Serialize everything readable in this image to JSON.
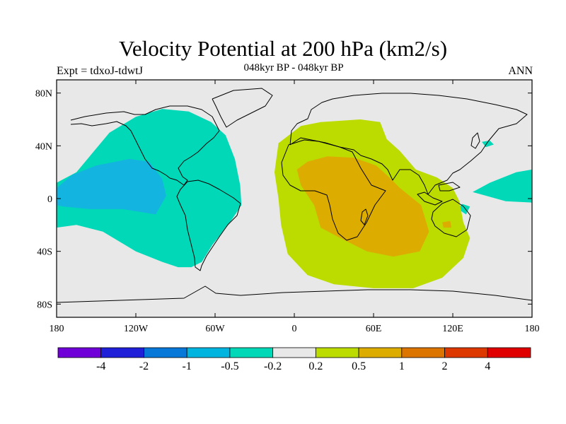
{
  "title": "Velocity Potential at 200 hPa (km2/s)",
  "subtitle": "048kyr BP - 048kyr BP",
  "left_label": "Expt = tdxoJ-tdwtJ",
  "right_label": "ANN",
  "colors": {
    "background": "#e8e8e8",
    "land_outline": "#000000",
    "neg_light": "#00d8b8",
    "neg_mid": "#14b4e0",
    "pos_light": "#bcdc00",
    "pos_mid": "#dcac00"
  },
  "chart_data": {
    "type": "map",
    "projection": "cylindrical-equidistant",
    "xlim": [
      -180,
      180
    ],
    "ylim": [
      -90,
      90
    ],
    "x_ticks": [
      {
        "value": -180,
        "label": "180"
      },
      {
        "value": -120,
        "label": "120W"
      },
      {
        "value": -60,
        "label": "60W"
      },
      {
        "value": 0,
        "label": "0"
      },
      {
        "value": 60,
        "label": "60E"
      },
      {
        "value": 120,
        "label": "120E"
      },
      {
        "value": 180,
        "label": "180"
      }
    ],
    "y_ticks": [
      {
        "value": 80,
        "label": "80N"
      },
      {
        "value": 40,
        "label": "40N"
      },
      {
        "value": 0,
        "label": "0"
      },
      {
        "value": -40,
        "label": "40S"
      },
      {
        "value": -80,
        "label": "80S"
      }
    ],
    "colorbar": {
      "colors": [
        "#7000d8",
        "#2020d8",
        "#0878d8",
        "#00b4e0",
        "#00d8b8",
        "#e8e8e8",
        "#bcdc00",
        "#dcac00",
        "#dc7400",
        "#dc3800",
        "#e00000"
      ],
      "labels": [
        "-4",
        "-2",
        "-1",
        "-0.5",
        "-0.2",
        "0.2",
        "0.5",
        "1",
        "2",
        "4"
      ]
    },
    "regions": [
      {
        "level": "neg_light",
        "points": [
          [
            -180,
            12
          ],
          [
            -165,
            20
          ],
          [
            -150,
            38
          ],
          [
            -140,
            50
          ],
          [
            -120,
            62
          ],
          [
            -100,
            68
          ],
          [
            -80,
            66
          ],
          [
            -63,
            58
          ],
          [
            -52,
            48
          ],
          [
            -45,
            30
          ],
          [
            -41,
            10
          ],
          [
            -40,
            -5
          ],
          [
            -50,
            -20
          ],
          [
            -62,
            -35
          ],
          [
            -70,
            -48
          ],
          [
            -78,
            -52
          ],
          [
            -88,
            -52
          ],
          [
            -100,
            -48
          ],
          [
            -120,
            -40
          ],
          [
            -145,
            -25
          ],
          [
            -165,
            -20
          ],
          [
            -180,
            -22
          ]
        ]
      },
      {
        "level": "neg_mid",
        "points": [
          [
            -180,
            8
          ],
          [
            -168,
            18
          ],
          [
            -150,
            25
          ],
          [
            -125,
            30
          ],
          [
            -110,
            28
          ],
          [
            -100,
            15
          ],
          [
            -97,
            2
          ],
          [
            -105,
            -12
          ],
          [
            -130,
            -8
          ],
          [
            -155,
            -8
          ],
          [
            -175,
            -6
          ],
          [
            -180,
            -5
          ]
        ]
      },
      {
        "level": "neg_light",
        "points": [
          [
            180,
            22
          ],
          [
            168,
            20
          ],
          [
            148,
            12
          ],
          [
            135,
            5
          ],
          [
            142,
            3
          ],
          [
            160,
            -2
          ],
          [
            180,
            -3
          ]
        ]
      },
      {
        "level": "neg_light",
        "points": [
          [
            124,
            -8
          ],
          [
            130,
            -12
          ],
          [
            133,
            -6
          ],
          [
            127,
            -4
          ]
        ]
      },
      {
        "level": "neg_light",
        "points": [
          [
            142,
            43
          ],
          [
            148,
            44
          ],
          [
            151,
            41
          ],
          [
            145,
            39
          ]
        ]
      },
      {
        "level": "pos_light",
        "points": [
          [
            -12,
            42
          ],
          [
            5,
            55
          ],
          [
            20,
            58
          ],
          [
            50,
            60
          ],
          [
            65,
            58
          ],
          [
            70,
            45
          ],
          [
            80,
            36
          ],
          [
            92,
            22
          ],
          [
            108,
            16
          ],
          [
            120,
            8
          ],
          [
            125,
            -2
          ],
          [
            128,
            -18
          ],
          [
            133,
            -30
          ],
          [
            128,
            -45
          ],
          [
            112,
            -60
          ],
          [
            90,
            -68
          ],
          [
            60,
            -68
          ],
          [
            30,
            -65
          ],
          [
            10,
            -58
          ],
          [
            -5,
            -42
          ],
          [
            -10,
            -20
          ],
          [
            -12,
            0
          ],
          [
            -15,
            20
          ]
        ]
      },
      {
        "level": "pos_mid",
        "points": [
          [
            2,
            22
          ],
          [
            10,
            28
          ],
          [
            25,
            32
          ],
          [
            45,
            31
          ],
          [
            62,
            25
          ],
          [
            72,
            16
          ],
          [
            80,
            8
          ],
          [
            96,
            -5
          ],
          [
            102,
            -25
          ],
          [
            95,
            -40
          ],
          [
            75,
            -44
          ],
          [
            55,
            -40
          ],
          [
            35,
            -30
          ],
          [
            20,
            -22
          ],
          [
            15,
            -5
          ],
          [
            5,
            10
          ]
        ]
      },
      {
        "level": "pos_mid",
        "points": [
          [
            112,
            -18
          ],
          [
            118,
            -17
          ],
          [
            119,
            -22
          ],
          [
            113,
            -22
          ]
        ]
      }
    ]
  }
}
